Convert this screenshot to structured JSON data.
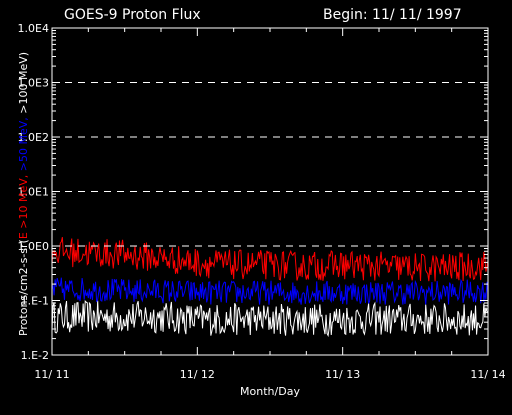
{
  "chart_data": {
    "type": "line",
    "title": "GOES-9 Proton Flux",
    "begin_label": "Begin: 11/ 11/ 1997",
    "xlabel": "Month/Day",
    "ylabel": {
      "prefix": "Protons/cm2-s-sr(",
      "e10": "E >10 MeV,",
      "e50": " >50 MeV,",
      "e100": " >100 MeV)"
    },
    "y_scale": "log",
    "ylim": [
      0.01,
      10000
    ],
    "y_ticks": [
      {
        "value": 0.01,
        "label": "1.E-2"
      },
      {
        "value": 0.1,
        "label": "1.E-1"
      },
      {
        "value": 1,
        "label": "1.0E0"
      },
      {
        "value": 10,
        "label": "1.0E1"
      },
      {
        "value": 100,
        "label": "1.0E2"
      },
      {
        "value": 1000,
        "label": "1.0E3"
      },
      {
        "value": 10000,
        "label": "1.0E4"
      }
    ],
    "grid_lines_at": [
      1,
      10,
      100,
      1000
    ],
    "xlim": [
      0,
      3
    ],
    "x_ticks": [
      {
        "value": 0,
        "label": "11/ 11"
      },
      {
        "value": 1,
        "label": "11/ 12"
      },
      {
        "value": 2,
        "label": "11/ 13"
      },
      {
        "value": 3,
        "label": "11/ 14"
      }
    ],
    "series": [
      {
        "color": "#ff0000",
        "x": [
          0,
          0.25,
          0.5,
          0.75,
          1,
          1.25,
          1.5,
          1.75,
          2,
          2.25,
          2.5,
          2.75,
          3
        ],
        "values": [
          0.8,
          0.75,
          0.7,
          0.6,
          0.5,
          0.45,
          0.45,
          0.42,
          0.45,
          0.42,
          0.4,
          0.4,
          0.45
        ]
      },
      {
        "color": "#0000ff",
        "x": [
          0,
          0.25,
          0.5,
          0.75,
          1,
          1.25,
          1.5,
          1.75,
          2,
          2.25,
          2.5,
          2.75,
          3
        ],
        "values": [
          0.16,
          0.16,
          0.15,
          0.15,
          0.14,
          0.14,
          0.14,
          0.14,
          0.14,
          0.14,
          0.14,
          0.14,
          0.15
        ]
      },
      {
        "color": "#ffffff",
        "x": [
          0,
          0.25,
          0.5,
          0.75,
          1,
          1.25,
          1.5,
          1.75,
          2,
          2.25,
          2.5,
          2.75,
          3
        ],
        "values": [
          0.05,
          0.05,
          0.05,
          0.05,
          0.045,
          0.045,
          0.045,
          0.045,
          0.045,
          0.045,
          0.045,
          0.045,
          0.045
        ]
      }
    ]
  }
}
